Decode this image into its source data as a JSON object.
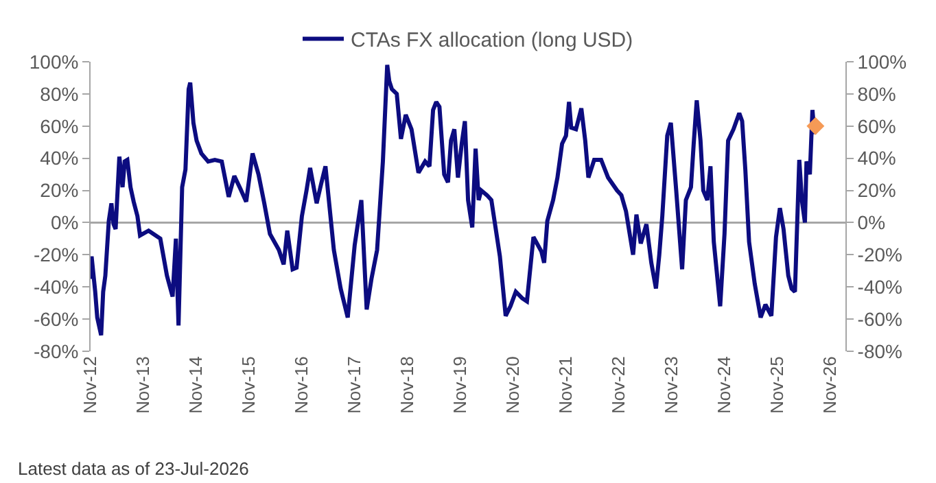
{
  "chart_data": {
    "type": "line",
    "series": [
      {
        "name": "CTAs FX allocation (long USD)",
        "color": "#0c0c80",
        "x": [
          "2012-11-01",
          "2012-11-08",
          "2012-12-03",
          "2012-12-17",
          "2013-01-13",
          "2013-01-27",
          "2013-02-11",
          "2013-03-07",
          "2013-03-25",
          "2013-04-09",
          "2013-04-23",
          "2013-05-19",
          "2013-06-10",
          "2013-06-25",
          "2013-07-13",
          "2013-08-04",
          "2013-08-26",
          "2013-09-21",
          "2013-10-09",
          "2013-12-07",
          "2014-02-26",
          "2014-04-13",
          "2014-05-22",
          "2014-06-14",
          "2014-07-02",
          "2014-07-27",
          "2014-08-19",
          "2014-09-10",
          "2014-09-21",
          "2014-10-13",
          "2014-11-04",
          "2014-12-07",
          "2015-01-23",
          "2015-03-10",
          "2015-04-27",
          "2015-06-14",
          "2015-07-23",
          "2015-09-03",
          "2015-10-13",
          "2015-11-26",
          "2016-01-06",
          "2016-02-15",
          "2016-03-25",
          "2016-05-26",
          "2016-06-28",
          "2016-07-23",
          "2016-08-29",
          "2016-09-25",
          "2016-11-01",
          "2016-12-03",
          "2016-12-28",
          "2017-02-11",
          "2017-03-14",
          "2017-04-13",
          "2017-06-10",
          "2017-07-27",
          "2017-09-14",
          "2017-11-01",
          "2017-12-17",
          "2018-01-23",
          "2018-02-25",
          "2018-04-05",
          "2018-05-15",
          "2018-06-14",
          "2018-06-28",
          "2018-07-16",
          "2018-08-19",
          "2018-09-17",
          "2018-10-20",
          "2018-11-29",
          "2019-01-16",
          "2019-03-03",
          "2019-04-02",
          "2019-04-27",
          "2019-05-19",
          "2019-06-10",
          "2019-07-13",
          "2019-08-08",
          "2019-08-29",
          "2019-09-21",
          "2019-10-16",
          "2019-11-11",
          "2019-12-03",
          "2019-12-25",
          "2020-01-23",
          "2020-02-15",
          "2020-03-07",
          "2020-03-25",
          "2020-05-04",
          "2020-06-03",
          "2020-06-25",
          "2020-08-01",
          "2020-09-10",
          "2020-10-13",
          "2020-11-19",
          "2021-01-02",
          "2021-02-04",
          "2021-03-21",
          "2021-05-15",
          "2021-06-03",
          "2021-06-25",
          "2021-08-04",
          "2021-09-03",
          "2021-10-05",
          "2021-11-01",
          "2021-11-22",
          "2021-12-07",
          "2022-01-09",
          "2022-02-15",
          "2022-03-14",
          "2022-04-05",
          "2022-05-15",
          "2022-07-02",
          "2022-08-19",
          "2022-10-20",
          "2022-11-19",
          "2022-12-21",
          "2023-02-08",
          "2023-03-03",
          "2023-04-02",
          "2023-05-11",
          "2023-06-14",
          "2023-07-16",
          "2023-08-08",
          "2023-08-29",
          "2023-10-02",
          "2023-10-27",
          "2023-12-03",
          "2024-01-13",
          "2024-02-08",
          "2024-03-14",
          "2024-04-02",
          "2024-04-23",
          "2024-05-19",
          "2024-06-07",
          "2024-07-05",
          "2024-07-27",
          "2024-08-19",
          "2024-10-02",
          "2024-11-01",
          "2024-11-26",
          "2025-01-02",
          "2025-02-11",
          "2025-03-03",
          "2025-03-25",
          "2025-04-20",
          "2025-05-29",
          "2025-07-09",
          "2025-08-11",
          "2025-09-21",
          "2025-10-23",
          "2025-11-19",
          "2025-12-14",
          "2026-01-16",
          "2026-02-08",
          "2026-03-03",
          "2026-04-02",
          "2026-04-20",
          "2026-05-11",
          "2026-05-22",
          "2026-06-14",
          "2026-07-02",
          "2026-07-16"
        ],
        "values": [
          -35,
          -21,
          -43,
          -59,
          -70,
          -43,
          -33,
          1,
          12,
          -1,
          -4,
          41,
          22,
          38,
          39,
          22,
          13,
          4,
          -8,
          -5,
          -10,
          -33,
          -46,
          -10,
          -64,
          22,
          33,
          83,
          87,
          62,
          51,
          43,
          38,
          39,
          38,
          16,
          29,
          21,
          13,
          43,
          30,
          12,
          -7,
          -17,
          -26,
          -5,
          -29,
          -28,
          4,
          20,
          34,
          12,
          24,
          35,
          -17,
          -41,
          -59,
          -14,
          14,
          -54,
          -35,
          -17,
          38,
          98,
          88,
          83,
          80,
          52,
          67,
          58,
          31,
          38,
          35,
          70,
          75,
          72,
          30,
          25,
          51,
          58,
          28,
          49,
          63,
          14,
          -3,
          46,
          14,
          20,
          17,
          14,
          1,
          -21,
          -58,
          -52,
          -43,
          -47,
          -49,
          -9,
          -18,
          -25,
          1,
          14,
          28,
          49,
          54,
          75,
          59,
          58,
          71,
          51,
          28,
          39,
          39,
          28,
          20,
          17,
          7,
          -20,
          5,
          -13,
          -1,
          -25,
          -41,
          -20,
          4,
          54,
          62,
          20,
          -29,
          14,
          22,
          49,
          76,
          51,
          20,
          14,
          35,
          -12,
          -52,
          -7,
          51,
          58,
          68,
          63,
          33,
          -12,
          -38,
          -59,
          -51,
          -58,
          -9,
          9,
          -4,
          -33,
          -41,
          -43,
          39,
          14,
          0,
          38,
          30,
          70,
          55
        ]
      },
      {
        "type": "scatter",
        "marker": "diamond",
        "color": "#f59a56",
        "x": [
          "2026-07-23"
        ],
        "values": [
          60
        ]
      }
    ],
    "xlim": [
      "2012-11-01",
      "2027-02-15"
    ],
    "xticks": [
      {
        "value": "2012-11-01",
        "label": "Nov-12"
      },
      {
        "value": "2013-11-01",
        "label": "Nov-13"
      },
      {
        "value": "2014-11-01",
        "label": "Nov-14"
      },
      {
        "value": "2015-11-01",
        "label": "Nov-15"
      },
      {
        "value": "2016-11-01",
        "label": "Nov-16"
      },
      {
        "value": "2017-11-01",
        "label": "Nov-17"
      },
      {
        "value": "2018-11-01",
        "label": "Nov-18"
      },
      {
        "value": "2019-11-01",
        "label": "Nov-19"
      },
      {
        "value": "2020-11-01",
        "label": "Nov-20"
      },
      {
        "value": "2021-11-01",
        "label": "Nov-21"
      },
      {
        "value": "2022-11-01",
        "label": "Nov-22"
      },
      {
        "value": "2023-11-01",
        "label": "Nov-23"
      },
      {
        "value": "2024-11-01",
        "label": "Nov-24"
      },
      {
        "value": "2025-11-01",
        "label": "Nov-25"
      },
      {
        "value": "2026-11-01",
        "label": "Nov-26"
      }
    ],
    "ylim": [
      -80,
      100
    ],
    "yticks": [
      {
        "value": -80,
        "label": "-80%"
      },
      {
        "value": -60,
        "label": "-60%"
      },
      {
        "value": -40,
        "label": "-40%"
      },
      {
        "value": -20,
        "label": "-20%"
      },
      {
        "value": 0,
        "label": "0%"
      },
      {
        "value": 20,
        "label": "20%"
      },
      {
        "value": 40,
        "label": "40%"
      },
      {
        "value": 60,
        "label": "60%"
      },
      {
        "value": 80,
        "label": "80%"
      },
      {
        "value": 100,
        "label": "100%"
      }
    ],
    "y2lim": [
      -80,
      100
    ],
    "y2ticks": [
      {
        "value": -80,
        "label": "-80%"
      },
      {
        "value": -60,
        "label": "-60%"
      },
      {
        "value": -40,
        "label": "-40%"
      },
      {
        "value": -20,
        "label": "-20%"
      },
      {
        "value": 0,
        "label": "0%"
      },
      {
        "value": 20,
        "label": "20%"
      },
      {
        "value": 40,
        "label": "40%"
      },
      {
        "value": 60,
        "label": "60%"
      },
      {
        "value": 80,
        "label": "80%"
      },
      {
        "value": 100,
        "label": "100%"
      }
    ],
    "ref_lines": [
      {
        "axis": "y",
        "value": 0,
        "color": "#a6a6a6"
      }
    ],
    "grid": false,
    "legend": "top",
    "annotations": [
      "Latest data as of 23-Jul-2026"
    ]
  }
}
